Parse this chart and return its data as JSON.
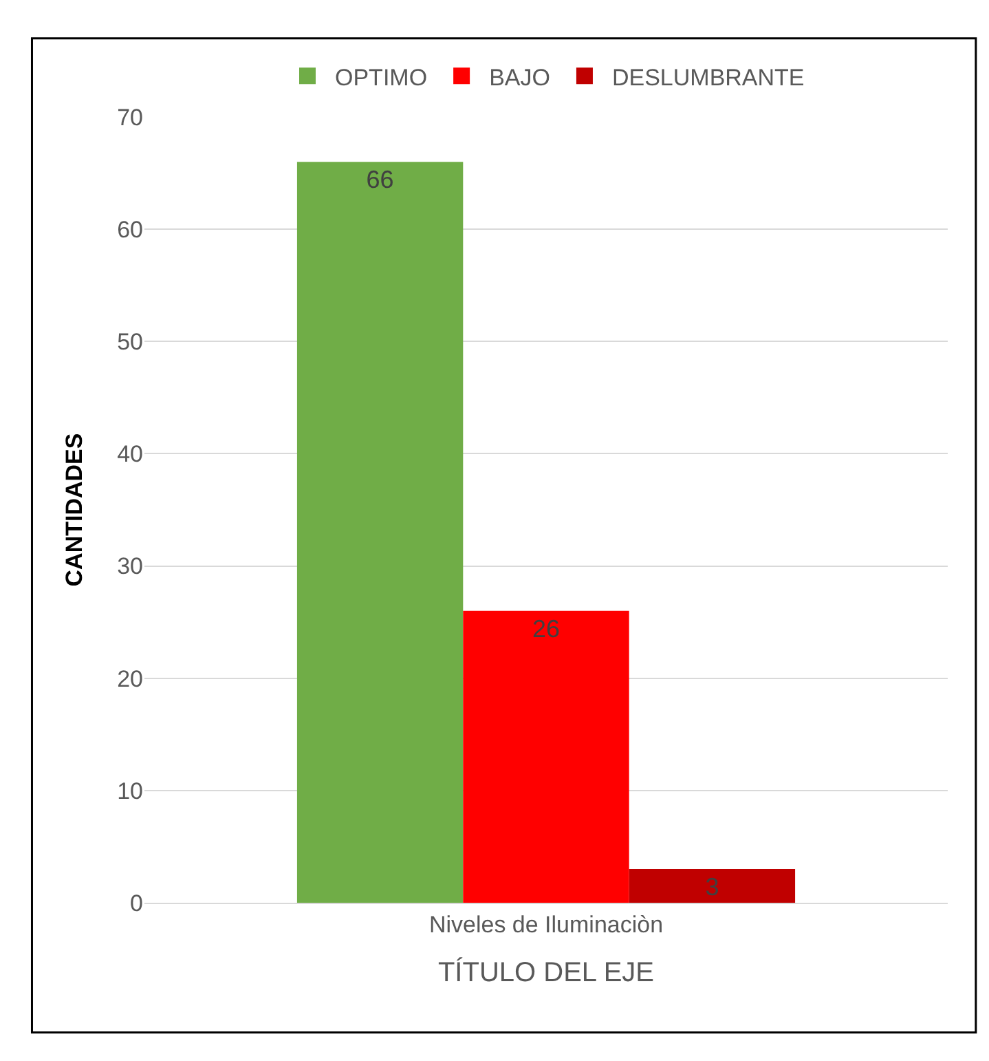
{
  "chart_data": {
    "type": "bar",
    "xlabel": "TÍTULO DEL EJE",
    "ylabel": "CANTIDADES",
    "categories": [
      "Niveles de Iluminaciòn"
    ],
    "series": [
      {
        "name": "OPTIMO",
        "color": "#70ad47",
        "values": [
          66
        ]
      },
      {
        "name": "BAJO",
        "color": "#ff0000",
        "values": [
          26
        ]
      },
      {
        "name": "DESLUMBRANTE",
        "color": "#c00000",
        "values": [
          3
        ]
      }
    ],
    "ylim": [
      0,
      70
    ],
    "yticks": [
      0,
      10,
      20,
      30,
      40,
      50,
      60,
      70
    ],
    "grid": "y",
    "legend": "top",
    "data_labels": true
  }
}
